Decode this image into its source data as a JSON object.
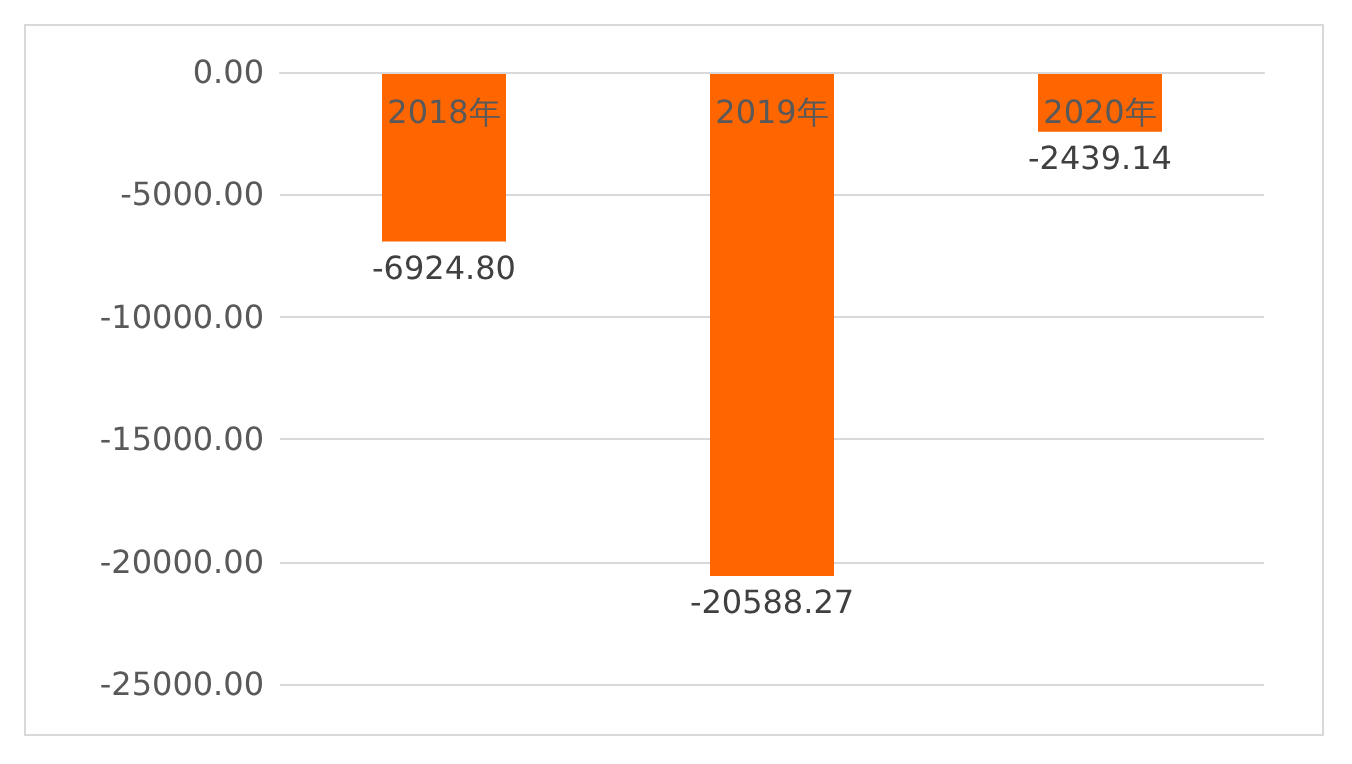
{
  "chart_data": {
    "type": "bar",
    "categories": [
      "2018年",
      "2019年",
      "2020年"
    ],
    "values": [
      -6924.8,
      -20588.27,
      -2439.14
    ],
    "color": "#ff6600",
    "value_labels": [
      "-6924.80",
      "-20588.27",
      "-2439.14"
    ],
    "ylim": [
      -25000,
      0
    ],
    "yticks": [
      {
        "value": -25000,
        "label": "-25000.00"
      },
      {
        "value": -20000,
        "label": "-20000.00"
      },
      {
        "value": -15000,
        "label": "-15000.00"
      },
      {
        "value": -10000,
        "label": "-10000.00"
      },
      {
        "value": -5000,
        "label": "-5000.00"
      },
      {
        "value": 0,
        "label": "0.00"
      }
    ],
    "grid": "y"
  }
}
